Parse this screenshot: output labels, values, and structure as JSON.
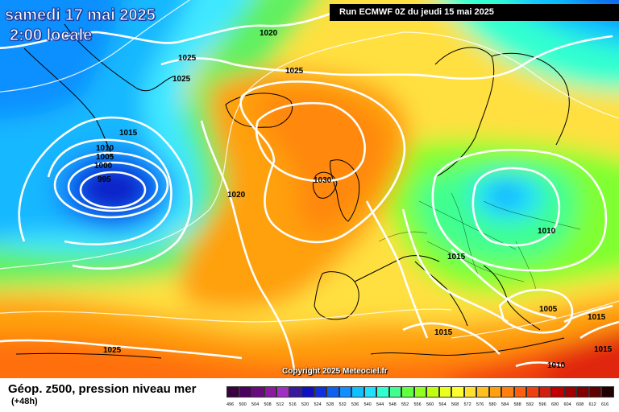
{
  "header": {
    "date": "samedi 17 mai 2025",
    "time": "2:00 locale",
    "run": "Run ECMWF 0Z du jeudi 15 mai 2025"
  },
  "copyright": "Copyright 2025 Meteociel.fr",
  "footer": {
    "title": "Géop. z500, pression niveau mer",
    "subtitle": "(+48h)"
  },
  "isobar_labels": [
    {
      "text": "1020",
      "key": "iso-1020-top"
    },
    {
      "text": "1025",
      "key": "iso-1025-a"
    },
    {
      "text": "1025",
      "key": "iso-1025-b"
    },
    {
      "text": "1025",
      "key": "iso-1025-c"
    },
    {
      "text": "1015",
      "key": "iso-1015-low"
    },
    {
      "text": "1010",
      "key": "iso-1010-low"
    },
    {
      "text": "1005",
      "key": "iso-1005-low"
    },
    {
      "text": "1000",
      "key": "iso-1000-low"
    },
    {
      "text": "995",
      "key": "iso-995-low"
    },
    {
      "text": "1020",
      "key": "iso-1020-mid"
    },
    {
      "text": "1030",
      "key": "iso-1030"
    },
    {
      "text": "1010",
      "key": "iso-1010-east"
    },
    {
      "text": "1015",
      "key": "iso-1015-central"
    },
    {
      "text": "1005",
      "key": "iso-1005-balkans"
    },
    {
      "text": "1015",
      "key": "iso-1015-iberia"
    },
    {
      "text": "1015",
      "key": "iso-1015-east-a"
    },
    {
      "text": "1015",
      "key": "iso-1015-east-b"
    },
    {
      "text": "1010",
      "key": "iso-1010-south"
    },
    {
      "text": "1025",
      "key": "iso-1025-sw"
    }
  ],
  "scale": {
    "labels": [
      "496",
      "500",
      "504",
      "508",
      "512",
      "516",
      "520",
      "524",
      "528",
      "532",
      "536",
      "540",
      "544",
      "548",
      "552",
      "556",
      "560",
      "564",
      "568",
      "572",
      "576",
      "580",
      "584",
      "588",
      "592",
      "596",
      "600",
      "604",
      "608",
      "612",
      "616"
    ],
    "colors": [
      "#3a0040",
      "#4a0060",
      "#6a0a80",
      "#8a1aa0",
      "#a030c0",
      "#3a1a9a",
      "#1010c0",
      "#1030e0",
      "#1060f0",
      "#1090ff",
      "#10c0ff",
      "#20e0ff",
      "#30ffd0",
      "#40ff90",
      "#60ff40",
      "#90ff20",
      "#c0ff10",
      "#e8ff20",
      "#ffff30",
      "#ffe030",
      "#ffc020",
      "#ffa010",
      "#ff8010",
      "#ff6010",
      "#f04010",
      "#d02010",
      "#c00000",
      "#a00000",
      "#800000",
      "#600000",
      "#200000"
    ]
  }
}
